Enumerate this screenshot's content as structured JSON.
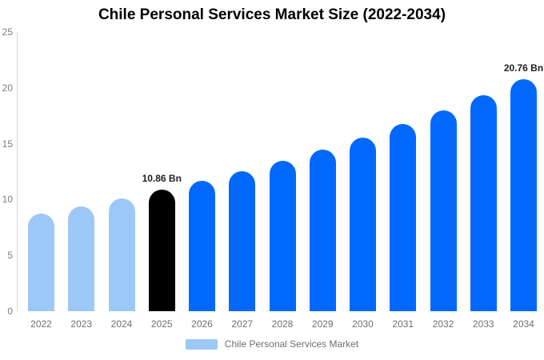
{
  "chart_data": {
    "type": "bar",
    "title": "Chile Personal Services Market Size (2022-2034)",
    "unit": "Bn",
    "categories": [
      "2022",
      "2023",
      "2024",
      "2025",
      "2026",
      "2027",
      "2028",
      "2029",
      "2030",
      "2031",
      "2032",
      "2033",
      "2034"
    ],
    "values": [
      8.75,
      9.4,
      10.11,
      10.86,
      11.67,
      12.54,
      13.48,
      14.48,
      15.57,
      16.73,
      17.98,
      19.32,
      20.76
    ],
    "bar_colors": [
      "#9CC8F7",
      "#9CC8F7",
      "#9CC8F7",
      "#000000",
      "#0268FB",
      "#0268FB",
      "#0268FB",
      "#0268FB",
      "#0268FB",
      "#0268FB",
      "#0268FB",
      "#0268FB",
      "#0268FB"
    ],
    "annotations": [
      {
        "index": 3,
        "label": "10.86 Bn"
      },
      {
        "index": 12,
        "label": "20.76 Bn"
      }
    ],
    "xlabel": "",
    "ylabel": "",
    "ylim": [
      0,
      25
    ],
    "yticks": [
      0,
      5,
      10,
      15,
      20,
      25
    ],
    "grid": false,
    "legend_position": "bottom",
    "legend": [
      {
        "label": "Chile Personal Services Market",
        "color": "#9CC8F7"
      }
    ],
    "colors": {
      "historical": "#9CC8F7",
      "highlight": "#000000",
      "forecast": "#0268FB",
      "axis_line": "#D8D8D8",
      "tick_text": "#7D7D7D",
      "annotation_text": "#1F1F1F"
    }
  }
}
